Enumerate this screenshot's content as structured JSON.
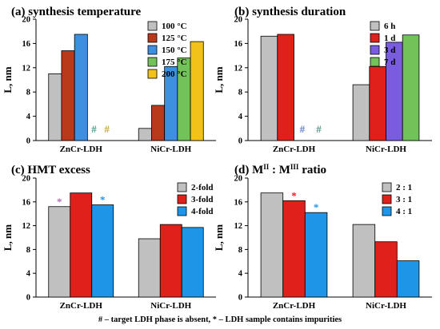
{
  "chart_data": [
    {
      "type": "bar",
      "title": "(a) synthesis temperature",
      "title_sup": [],
      "ylabel": "L, nm",
      "ylim": [
        0,
        20
      ],
      "yticks": [
        0,
        4,
        8,
        12,
        16,
        20
      ],
      "categories": [
        "ZnCr-LDH",
        "NiCr-LDH"
      ],
      "series": [
        {
          "name": "100 °C",
          "color": "#c0c0c0",
          "values": [
            11.0,
            2.0
          ]
        },
        {
          "name": "125 °C",
          "color": "#b83a1a",
          "values": [
            14.8,
            5.8
          ]
        },
        {
          "name": "150 °C",
          "color": "#3d8fe0",
          "values": [
            17.5,
            12.2
          ]
        },
        {
          "name": "175 °C",
          "color": "#72c25a",
          "values": [
            null,
            13.6
          ]
        },
        {
          "name": "200 °C",
          "color": "#f2c218",
          "values": [
            null,
            16.3
          ]
        }
      ],
      "markers": [
        {
          "category": 0,
          "series": 3,
          "text": "#",
          "color": "#4a9a8a"
        },
        {
          "category": 0,
          "series": 4,
          "text": "#",
          "color": "#c0a830"
        }
      ],
      "legend": "top-right"
    },
    {
      "type": "bar",
      "title": "(b) synthesis duration",
      "title_sup": [],
      "ylabel": "L, nm",
      "ylim": [
        0,
        20
      ],
      "yticks": [
        0,
        4,
        8,
        12,
        16,
        20
      ],
      "categories": [
        "ZnCr-LDH",
        "NiCr-LDH"
      ],
      "series": [
        {
          "name": "6 h",
          "color": "#c0c0c0",
          "values": [
            17.2,
            9.2
          ]
        },
        {
          "name": "1 d",
          "color": "#e0201a",
          "values": [
            17.5,
            12.2
          ]
        },
        {
          "name": "3 d",
          "color": "#7a5ce0",
          "values": [
            null,
            16.2
          ]
        },
        {
          "name": "7 d",
          "color": "#72c25a",
          "values": [
            null,
            17.4
          ]
        }
      ],
      "markers": [
        {
          "category": 0,
          "series": 2,
          "text": "#",
          "color": "#5a7ee0"
        },
        {
          "category": 0,
          "series": 3,
          "text": "#",
          "color": "#4a9a8a"
        }
      ],
      "legend": "top-right"
    },
    {
      "type": "bar",
      "title": "(c) HMT excess",
      "title_sup": [],
      "ylabel": "L, nm",
      "ylim": [
        0,
        20
      ],
      "yticks": [
        0,
        4,
        8,
        12,
        16,
        20
      ],
      "categories": [
        "ZnCr-LDH",
        "NiCr-LDH"
      ],
      "series": [
        {
          "name": "2-fold",
          "color": "#c0c0c0",
          "values": [
            15.2,
            9.8
          ]
        },
        {
          "name": "3-fold",
          "color": "#e0201a",
          "values": [
            17.5,
            12.2
          ]
        },
        {
          "name": "4-fold",
          "color": "#1f95e8",
          "values": [
            15.5,
            11.7
          ]
        }
      ],
      "markers": [
        {
          "category": 0,
          "series": 0,
          "text": "*",
          "color": "#b070b0"
        },
        {
          "category": 0,
          "series": 2,
          "text": "*",
          "color": "#1f95e8"
        }
      ],
      "legend": "top-right"
    },
    {
      "type": "bar",
      "title": "(d) M : M ratio",
      "title_sup": [
        "II",
        "III"
      ],
      "ylabel": "L, nm",
      "ylim": [
        0,
        20
      ],
      "yticks": [
        0,
        4,
        8,
        12,
        16,
        20
      ],
      "categories": [
        "ZnCr-LDH",
        "NiCr-LDH"
      ],
      "series": [
        {
          "name": "2 : 1",
          "color": "#c0c0c0",
          "values": [
            17.5,
            12.2
          ]
        },
        {
          "name": "3 : 1",
          "color": "#e0201a",
          "values": [
            16.2,
            9.3
          ]
        },
        {
          "name": "4 : 1",
          "color": "#1f95e8",
          "values": [
            14.2,
            6.1
          ]
        }
      ],
      "markers": [
        {
          "category": 0,
          "series": 1,
          "text": "*",
          "color": "#e0201a"
        },
        {
          "category": 0,
          "series": 2,
          "text": "*",
          "color": "#1f95e8"
        }
      ],
      "legend": "top-right"
    }
  ],
  "footnote": "# – target LDH phase is absent, * – LDH sample contains impurities"
}
